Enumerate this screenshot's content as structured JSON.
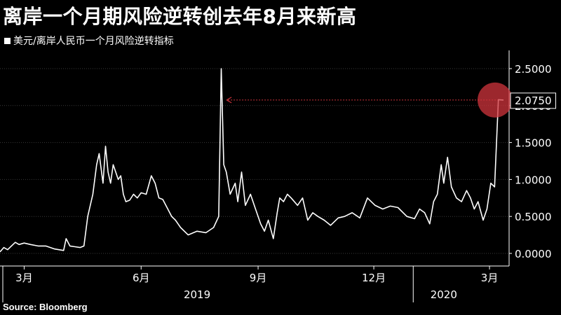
{
  "title": "离岸一个月期风险逆转创去年8月来新高",
  "source": "Source: Bloomberg",
  "colors": {
    "background": "#000000",
    "line": "#ffffff",
    "highlight": "#d0343c",
    "grid": "#3a3a3a"
  },
  "chart_data": {
    "type": "line",
    "title": "离岸一个月期风险逆转创去年8月来新高",
    "legend": "美元/离岸人民币一个月风险逆转指标",
    "ylim": [
      0,
      2.5
    ],
    "y_ticks": [
      "0.0000",
      "0.5000",
      "1.0000",
      "1.5000",
      "2.0000",
      "2.5000"
    ],
    "y_tick_values": [
      0,
      0.5,
      1.0,
      1.5,
      2.0,
      2.5
    ],
    "x_range": [
      "2019-02-10",
      "2020-03-12"
    ],
    "month_ticks": [
      {
        "date": "2019-03-01",
        "label": "3月"
      },
      {
        "date": "2019-06-01",
        "label": "6月"
      },
      {
        "date": "2019-09-01",
        "label": "9月"
      },
      {
        "date": "2019-12-01",
        "label": "12月"
      },
      {
        "date": "2020-03-01",
        "label": "3月"
      }
    ],
    "year_labels": [
      {
        "date": "2019-07-15",
        "label": "2019"
      },
      {
        "date": "2020-01-25",
        "label": "2020"
      }
    ],
    "year_separators": [
      "2019-01-01",
      "2020-01-01"
    ],
    "last_value": 2.075,
    "last_value_label": "2.0750",
    "reference_from": "2019-08-05",
    "series": [
      {
        "x": [
          "2019-02-10",
          "2019-02-13",
          "2019-02-16",
          "2019-02-19",
          "2019-02-22",
          "2019-02-25",
          "2019-03-01",
          "2019-03-06",
          "2019-03-12",
          "2019-03-18",
          "2019-03-25",
          "2019-04-01",
          "2019-04-03",
          "2019-04-06",
          "2019-04-10",
          "2019-04-14",
          "2019-04-17",
          "2019-04-20",
          "2019-04-24",
          "2019-04-27",
          "2019-04-29",
          "2019-05-02",
          "2019-05-04",
          "2019-05-06",
          "2019-05-08",
          "2019-05-10",
          "2019-05-12",
          "2019-05-14",
          "2019-05-16",
          "2019-05-18",
          "2019-05-20",
          "2019-05-23",
          "2019-05-26",
          "2019-05-29",
          "2019-06-01",
          "2019-06-05",
          "2019-06-09",
          "2019-06-12",
          "2019-06-15",
          "2019-06-18",
          "2019-06-22",
          "2019-06-25",
          "2019-06-28",
          "2019-07-02",
          "2019-07-08",
          "2019-07-15",
          "2019-07-22",
          "2019-07-28",
          "2019-08-01",
          "2019-08-03",
          "2019-08-05",
          "2019-08-07",
          "2019-08-10",
          "2019-08-14",
          "2019-08-16",
          "2019-08-19",
          "2019-08-22",
          "2019-08-26",
          "2019-08-30",
          "2019-09-03",
          "2019-09-06",
          "2019-09-09",
          "2019-09-13",
          "2019-09-16",
          "2019-09-18",
          "2019-09-21",
          "2019-09-24",
          "2019-09-27",
          "2019-10-02",
          "2019-10-06",
          "2019-10-10",
          "2019-10-14",
          "2019-10-18",
          "2019-10-23",
          "2019-10-28",
          "2019-11-03",
          "2019-11-08",
          "2019-11-14",
          "2019-11-20",
          "2019-11-26",
          "2019-12-02",
          "2019-12-08",
          "2019-12-14",
          "2019-12-20",
          "2019-12-27",
          "2020-01-02",
          "2020-01-06",
          "2020-01-10",
          "2020-01-14",
          "2020-01-17",
          "2020-01-20",
          "2020-01-23",
          "2020-01-25",
          "2020-01-28",
          "2020-01-31",
          "2020-02-04",
          "2020-02-08",
          "2020-02-12",
          "2020-02-15",
          "2020-02-18",
          "2020-02-21",
          "2020-02-25",
          "2020-02-28",
          "2020-03-02",
          "2020-03-05",
          "2020-03-08",
          "2020-03-12"
        ],
        "values": [
          0.02,
          0.08,
          0.05,
          0.1,
          0.15,
          0.12,
          0.14,
          0.12,
          0.1,
          0.1,
          0.06,
          0.04,
          0.2,
          0.1,
          0.09,
          0.08,
          0.1,
          0.5,
          0.8,
          1.2,
          1.35,
          0.95,
          1.45,
          1.1,
          0.95,
          1.2,
          1.1,
          1.0,
          1.05,
          0.8,
          0.7,
          0.72,
          0.8,
          0.75,
          0.82,
          0.8,
          1.05,
          0.95,
          0.75,
          0.73,
          0.6,
          0.5,
          0.45,
          0.35,
          0.25,
          0.3,
          0.28,
          0.35,
          0.5,
          2.5,
          1.2,
          1.1,
          0.8,
          0.95,
          0.7,
          1.1,
          0.65,
          0.8,
          0.6,
          0.4,
          0.3,
          0.45,
          0.2,
          0.55,
          0.75,
          0.7,
          0.8,
          0.75,
          0.65,
          0.75,
          0.45,
          0.55,
          0.5,
          0.45,
          0.38,
          0.48,
          0.5,
          0.55,
          0.48,
          0.75,
          0.65,
          0.6,
          0.64,
          0.62,
          0.5,
          0.47,
          0.6,
          0.55,
          0.4,
          0.7,
          0.8,
          1.2,
          0.95,
          1.3,
          0.9,
          0.75,
          0.7,
          0.85,
          0.75,
          0.6,
          0.7,
          0.45,
          0.6,
          0.95,
          0.9,
          2.08,
          2.075
        ]
      }
    ]
  }
}
